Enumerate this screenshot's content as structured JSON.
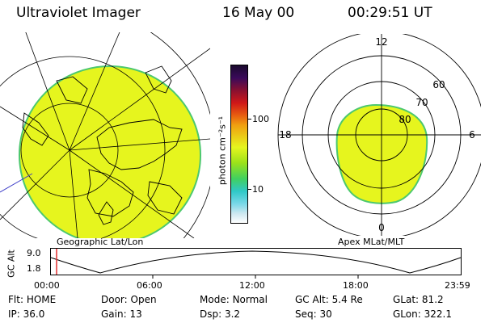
{
  "header": {
    "title": "Ultraviolet Imager",
    "date": "16 May 00",
    "time": "00:29:51 UT"
  },
  "left_panel": {
    "caption": "Geographic Lat/Lon"
  },
  "right_panel": {
    "caption": "Apex MLat/MLT",
    "mlt_labels": {
      "top": "12",
      "bottom": "0",
      "left": "18",
      "right": "6"
    },
    "lat_labels": [
      "60",
      "70",
      "80"
    ]
  },
  "colorbar": {
    "unit_label": "photon cm⁻²s⁻¹",
    "ticks": [
      "100",
      "10"
    ]
  },
  "altitude_plot": {
    "ylabel": "GC Alt",
    "y_ticks": [
      "9.0",
      "1.8"
    ],
    "x_ticks": [
      "00:00",
      "06:00",
      "12:00",
      "18:00",
      "23:59"
    ]
  },
  "status": {
    "row1": [
      {
        "label": "Flt:",
        "value": "HOME"
      },
      {
        "label": "Door:",
        "value": "Open"
      },
      {
        "label": "Mode:",
        "value": "Normal"
      },
      {
        "label": "GC Alt:",
        "value": "5.4 Re"
      },
      {
        "label": "GLat:",
        "value": "81.2"
      }
    ],
    "row2": [
      {
        "label": "IP:",
        "value": "36.0"
      },
      {
        "label": "Gain:",
        "value": "13"
      },
      {
        "label": "Dsp:",
        "value": "3.2"
      },
      {
        "label": "Seq:",
        "value": "30"
      },
      {
        "label": "GLon:",
        "value": "322.1"
      }
    ]
  },
  "colors": {
    "emission": "#e6f51e",
    "emission_edge": "#4cc86e",
    "cursor": "#e33030"
  }
}
